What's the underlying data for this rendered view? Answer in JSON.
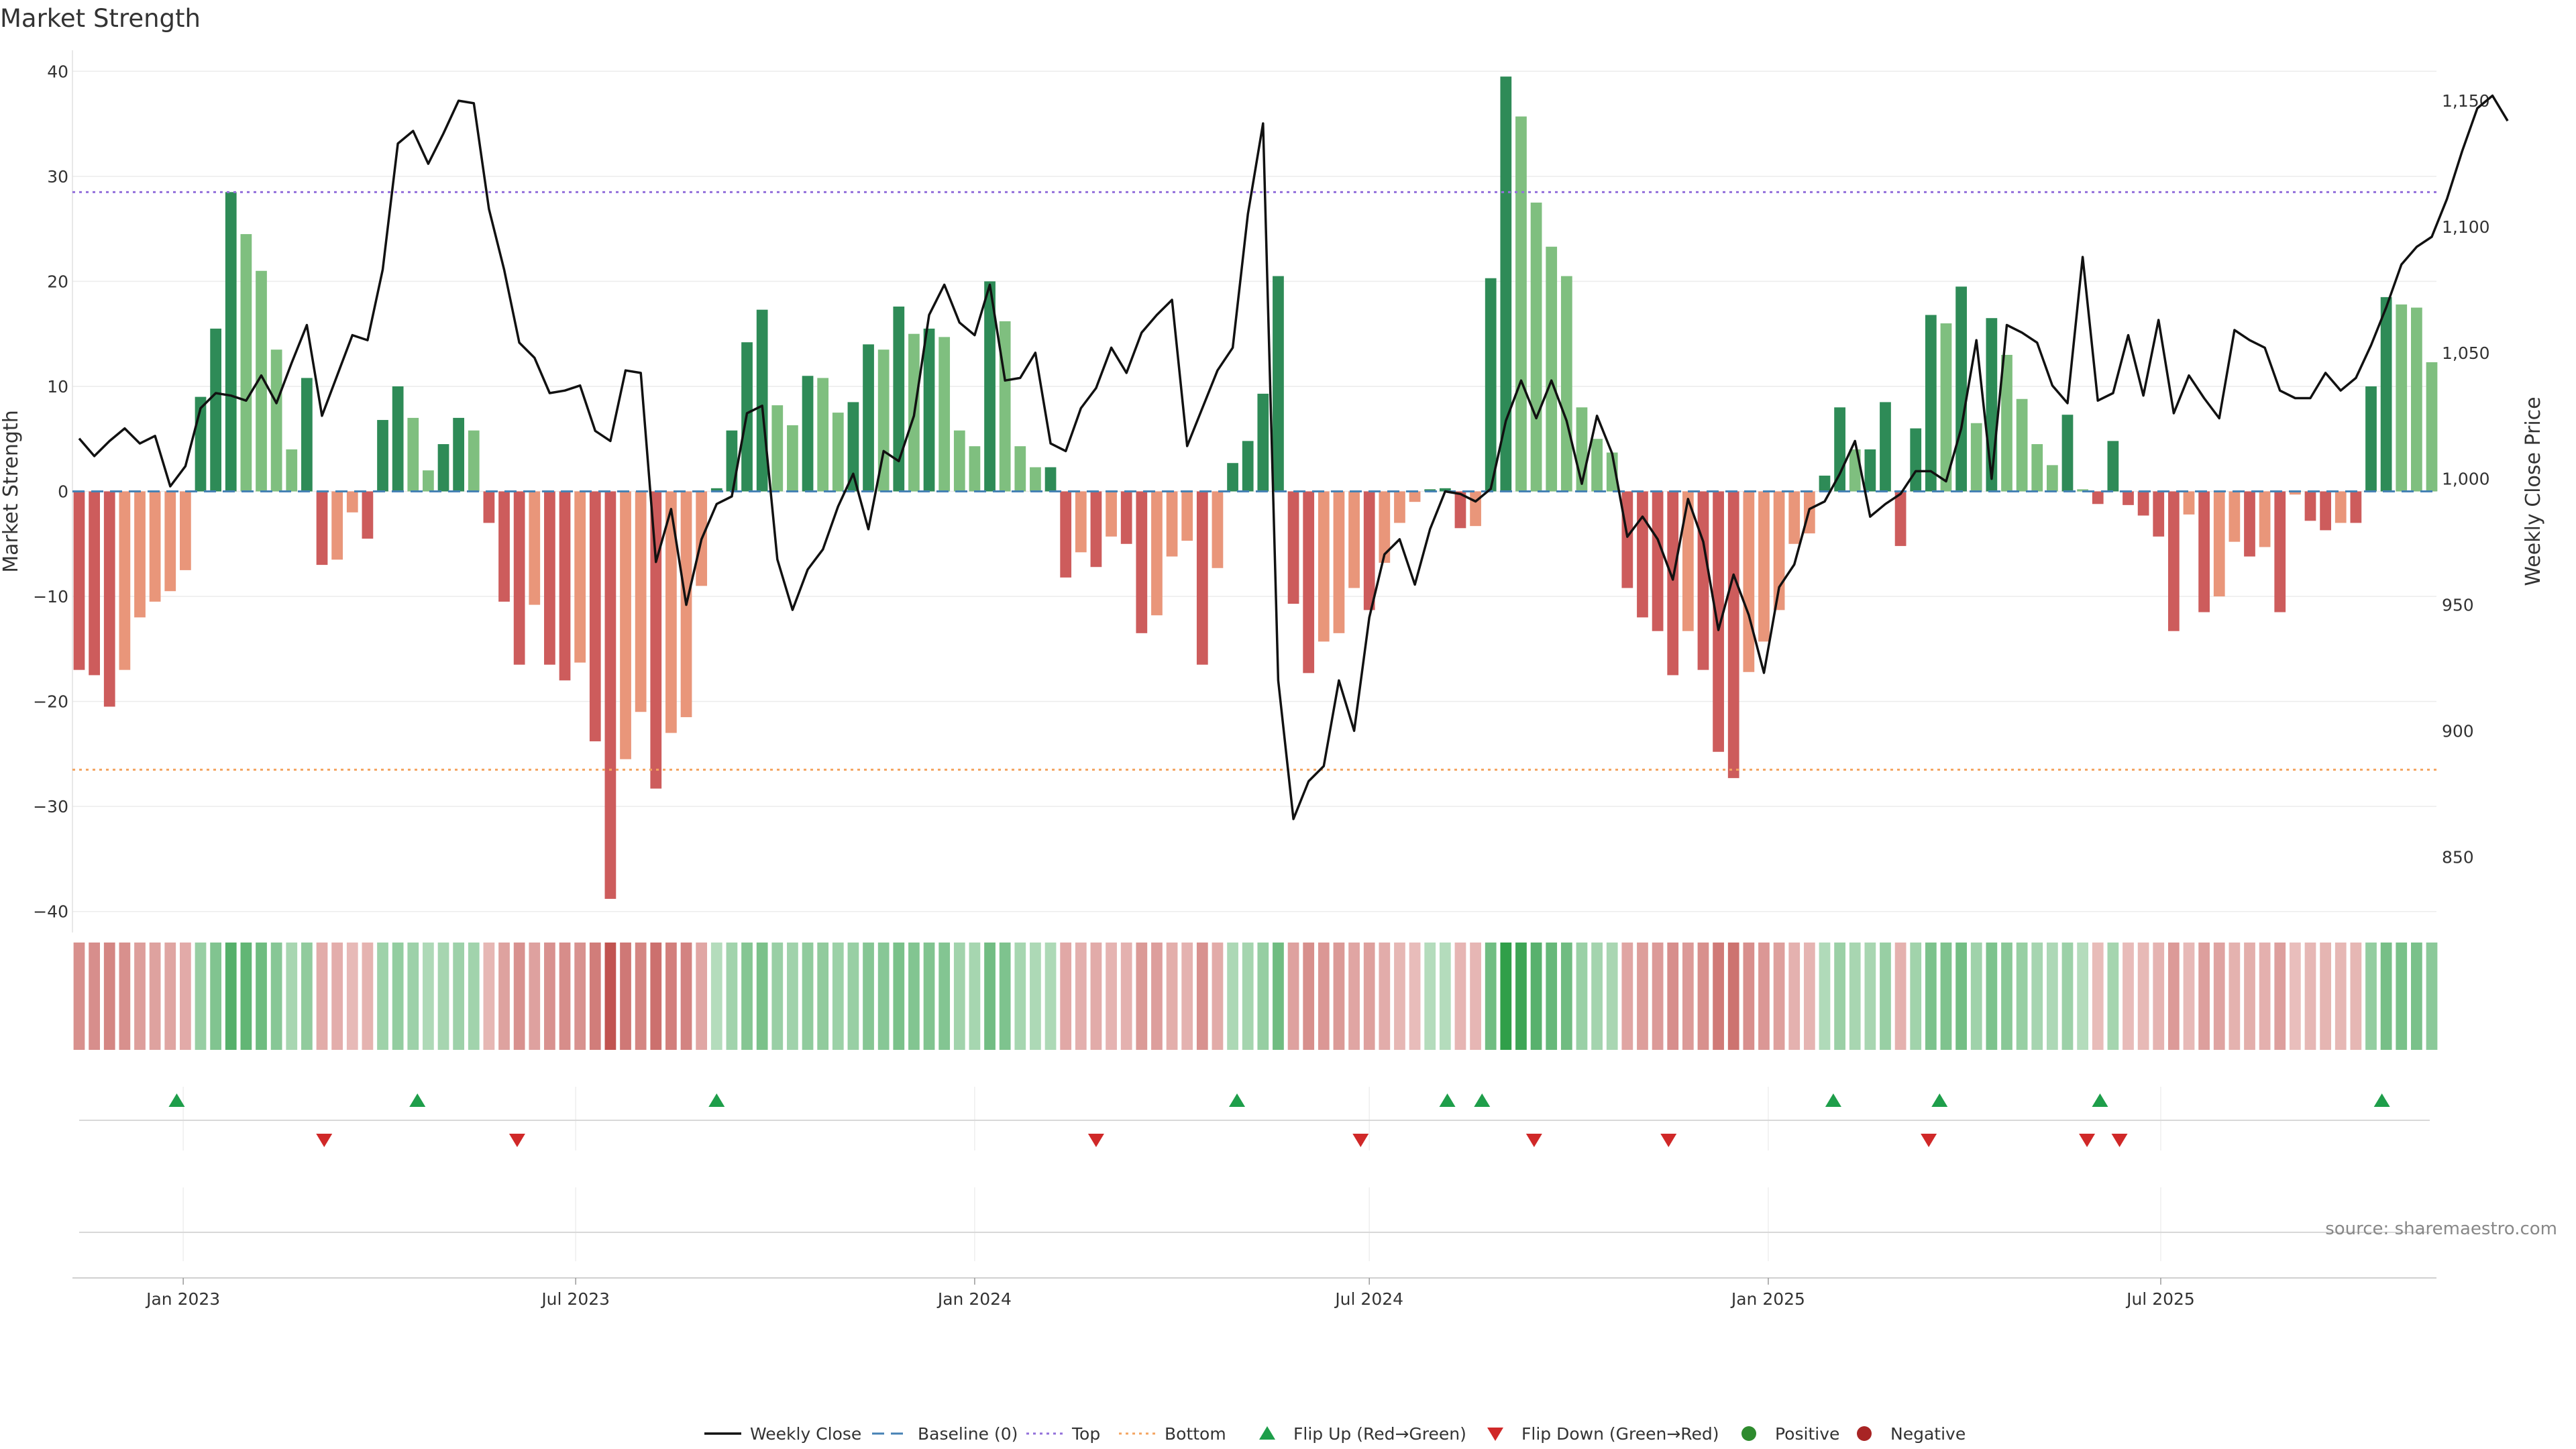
{
  "chart_data": {
    "type": "bar",
    "title": "Market Strength",
    "ylabel": "Market Strength",
    "y2label": "Weekly Close Price",
    "ylim": [
      -42,
      42
    ],
    "y2lim": [
      820,
      1170
    ],
    "yticks": [
      40,
      30,
      20,
      10,
      0,
      -10,
      -20,
      -30,
      -40
    ],
    "y2ticks": [
      1150,
      1100,
      1050,
      1000,
      950,
      900,
      850
    ],
    "y2tick_labels": [
      "1,150",
      "1,100",
      "1,050",
      "1,000",
      "950",
      "900",
      "850"
    ],
    "top_line": 28.5,
    "bottom_line": -26.5,
    "date_start": "2022-11-14",
    "x_tick_labels": [
      {
        "date": "2023-01-01",
        "label": "Jan 2023"
      },
      {
        "date": "2023-07-01",
        "label": "Jul 2023"
      },
      {
        "date": "2024-01-01",
        "label": "Jan 2024"
      },
      {
        "date": "2024-07-01",
        "label": "Jul 2024"
      },
      {
        "date": "2025-01-01",
        "label": "Jan 2025"
      },
      {
        "date": "2025-07-01",
        "label": "Jul 2025"
      }
    ],
    "strength": [
      -17,
      -17.5,
      -20.5,
      -17,
      -12,
      -10.5,
      -9.5,
      -7.5,
      9,
      15.5,
      28.5,
      24.5,
      21,
      13.5,
      4,
      10.8,
      -7,
      -6.5,
      -2,
      -4.5,
      6.8,
      10,
      7,
      2,
      4.5,
      7,
      5.8,
      -3,
      -10.5,
      -16.5,
      -10.8,
      -16.5,
      -18,
      -16.3,
      -23.8,
      -38.8,
      -25.5,
      -21,
      -28.3,
      -23,
      -21.5,
      -9,
      0.3,
      5.8,
      14.2,
      17.3,
      8.2,
      6.3,
      11,
      10.8,
      7.5,
      8.5,
      14,
      13.5,
      17.6,
      15,
      15.5,
      14.7,
      5.8,
      4.3,
      20,
      16.2,
      4.3,
      2.3,
      2.3,
      -8.2,
      -5.8,
      -7.2,
      -4.3,
      -5,
      -13.5,
      -11.8,
      -6.2,
      -4.7,
      -16.5,
      -7.3,
      2.7,
      4.8,
      9.3,
      20.5,
      -10.7,
      -17.3,
      -14.3,
      -13.5,
      -9.2,
      -11.3,
      -6.8,
      -3,
      -1,
      0.2,
      0.3,
      -3.5,
      -3.3,
      20.3,
      39.5,
      35.7,
      27.5,
      23.3,
      20.5,
      8,
      5,
      3.7,
      -9.2,
      -12,
      -13.3,
      -17.5,
      -13.3,
      -17,
      -24.8,
      -27.3,
      -17.2,
      -14.3,
      -11.3,
      -5,
      -4,
      1.5,
      8,
      4,
      4,
      8.5,
      -5.2,
      6,
      16.8,
      16,
      19.5,
      6.5,
      16.5,
      13,
      8.8,
      4.5,
      2.5,
      7.3,
      0.2,
      -1.2,
      4.8,
      -1.3,
      -2.3,
      -4.3,
      -13.3,
      -2.2,
      -11.5,
      -10,
      -4.8,
      -6.2,
      -5.3,
      -11.5,
      -0.3,
      -2.8,
      -3.7,
      -3,
      -3,
      10,
      18.5,
      17.8,
      17.5,
      12.3
    ],
    "weekly_close": [
      1016,
      1009,
      1015,
      1020,
      1014,
      1017,
      997,
      1005,
      1028,
      1034,
      1033,
      1031,
      1041,
      1030,
      1046,
      1061,
      1025,
      1041,
      1057,
      1055,
      1083,
      1133,
      1138,
      1125,
      1137,
      1150,
      1149,
      1107,
      1083,
      1054,
      1048,
      1034,
      1035,
      1037,
      1019,
      1015,
      1043,
      1042,
      967,
      988,
      950,
      976,
      990,
      993,
      1026,
      1029,
      968,
      948,
      964,
      972,
      989,
      1002,
      980,
      1011,
      1007,
      1025,
      1065,
      1077,
      1062,
      1057,
      1077,
      1039,
      1040,
      1050,
      1014,
      1011,
      1028,
      1036,
      1052,
      1042,
      1058,
      1065,
      1071,
      1013,
      1028,
      1043,
      1052,
      1105,
      1141,
      920,
      865,
      880,
      886,
      920,
      900,
      945,
      970,
      976,
      958,
      980,
      995,
      994,
      991,
      996,
      1023,
      1039,
      1024,
      1039,
      1023,
      998,
      1025,
      1010,
      977,
      985,
      976,
      960,
      992,
      975,
      940,
      962,
      946,
      923,
      957,
      966,
      988,
      991,
      1002,
      1015,
      985,
      990,
      994,
      1003,
      1003,
      999,
      1020,
      1055,
      1000,
      1061,
      1058,
      1054,
      1037,
      1030,
      1088,
      1031,
      1034,
      1057,
      1033,
      1063,
      1026,
      1041,
      1032,
      1024,
      1059,
      1055,
      1052,
      1035,
      1032,
      1032,
      1042,
      1035,
      1040,
      1053,
      1068,
      1085,
      1092,
      1096,
      1111,
      1130,
      1147,
      1152,
      1142
    ],
    "flip_up_dates": [
      "2022-12-29",
      "2023-04-19",
      "2023-09-04",
      "2024-05-01",
      "2024-08-06",
      "2024-08-22",
      "2025-01-31",
      "2025-03-21",
      "2025-06-03",
      "2025-10-11"
    ],
    "flip_down_dates": [
      "2023-03-07",
      "2023-06-04",
      "2024-02-26",
      "2024-06-27",
      "2024-09-15",
      "2024-11-16",
      "2025-03-16",
      "2025-05-28",
      "2025-06-12"
    ],
    "colors": {
      "dark_green": "#2e8b57",
      "light_green": "#7fbf7f",
      "dark_red": "#cd5c5c",
      "light_red": "#e9967a",
      "baseline": "#4682b4",
      "top": "#9370db",
      "bottom": "#f4a460",
      "price": "#111111",
      "flip_up": "#1e9e4a",
      "flip_down": "#d02828"
    }
  },
  "source_text": "source: sharemaestro.com",
  "legend": [
    {
      "key": "weekly-close",
      "label": "Weekly Close",
      "marker": "line"
    },
    {
      "key": "baseline",
      "label": "Baseline (0)",
      "marker": "dash"
    },
    {
      "key": "top",
      "label": "Top",
      "marker": "dot"
    },
    {
      "key": "bottom",
      "label": "Bottom",
      "marker": "dot"
    },
    {
      "key": "flip-up",
      "label": "Flip Up (Red→Green)",
      "marker": "triangle-up"
    },
    {
      "key": "flip-down",
      "label": "Flip Down (Green→Red)",
      "marker": "triangle-down"
    },
    {
      "key": "positive",
      "label": "Positive",
      "marker": "circle"
    },
    {
      "key": "negative",
      "label": "Negative",
      "marker": "circle"
    }
  ]
}
